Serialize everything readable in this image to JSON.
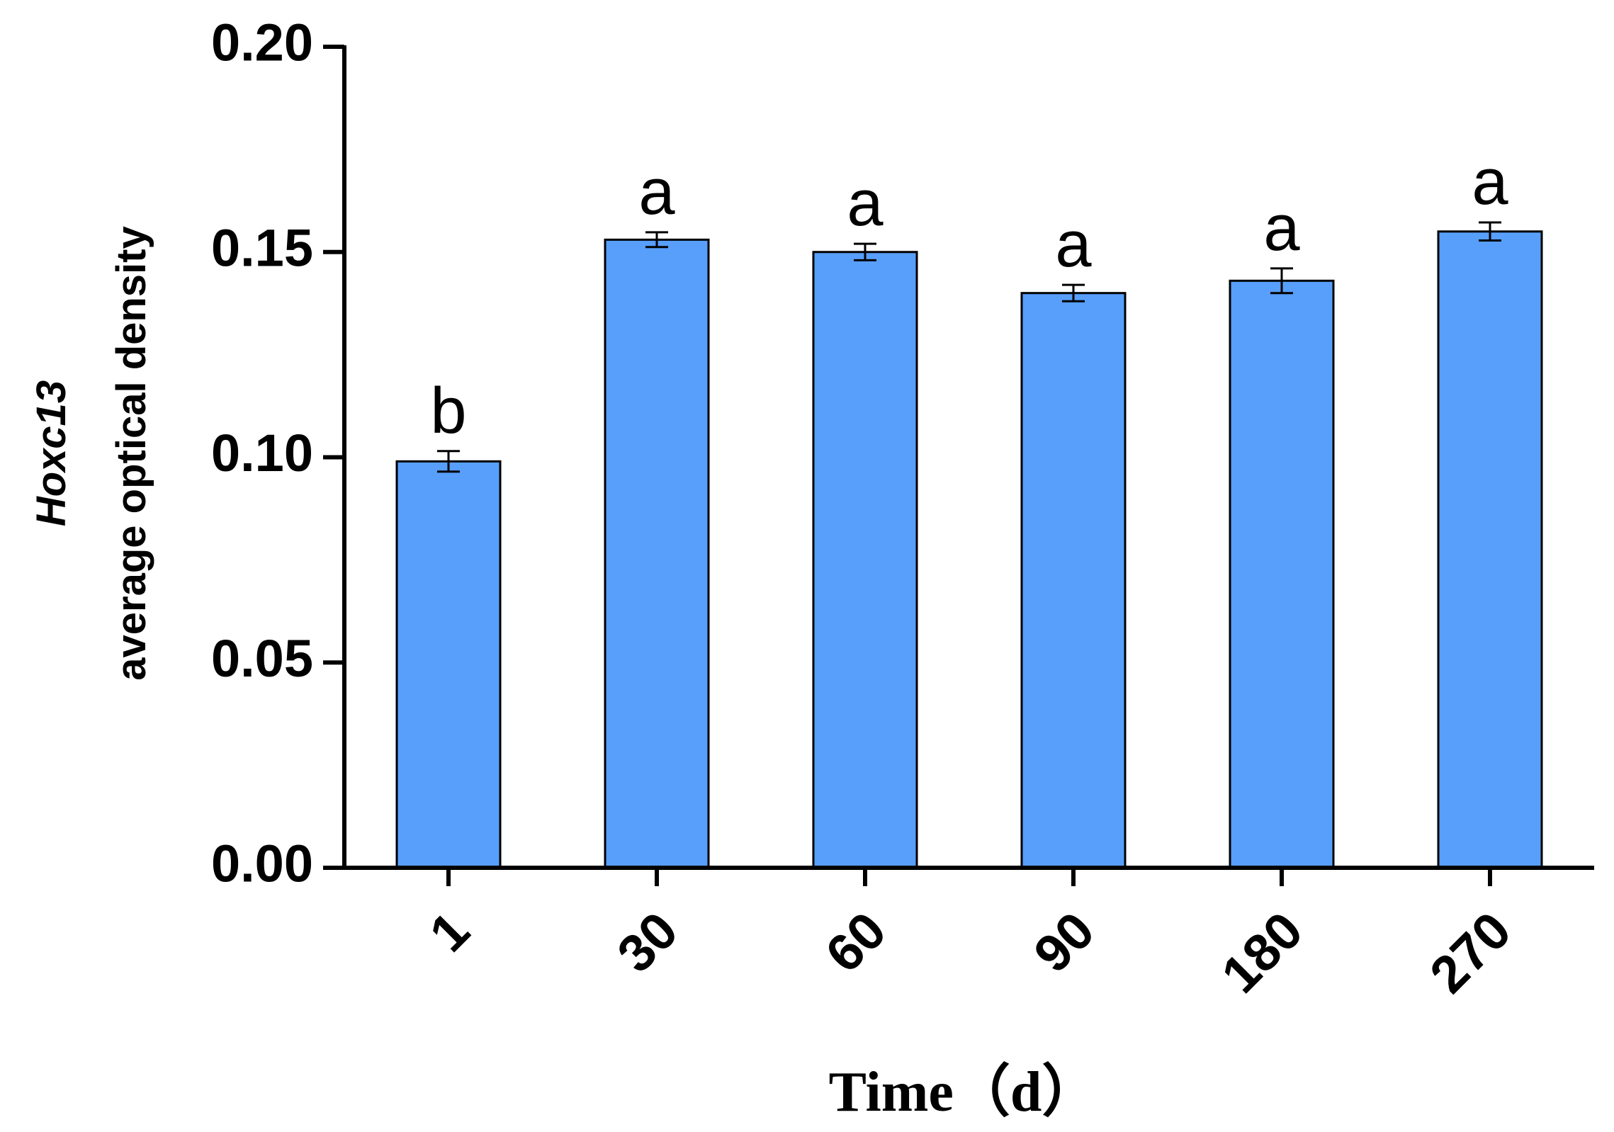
{
  "chart_data": {
    "type": "bar",
    "title": "",
    "categories": [
      "1",
      "30",
      "60",
      "90",
      "180",
      "270"
    ],
    "values": [
      0.099,
      0.153,
      0.15,
      0.14,
      0.143,
      0.155
    ],
    "errors": [
      0.0025,
      0.0018,
      0.002,
      0.002,
      0.003,
      0.0022
    ],
    "significance": [
      "b",
      "a",
      "a",
      "a",
      "a",
      "a"
    ],
    "ylabel_line1": "Hoxc13",
    "ylabel_line2": "average optical density",
    "xlabel": "Time（d）",
    "ylim": [
      0,
      0.2
    ],
    "yticks": [
      "0.00",
      "0.05",
      "0.10",
      "0.15",
      "0.20"
    ],
    "bar_color": "#579ffb",
    "grid": false
  }
}
